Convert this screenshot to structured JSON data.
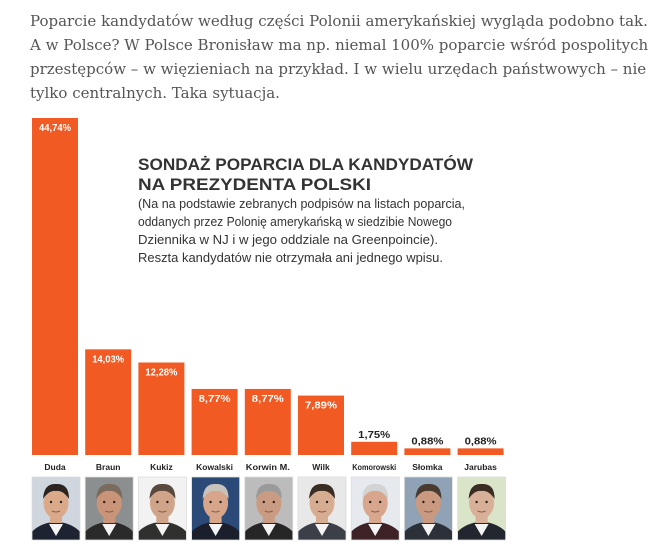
{
  "article": {
    "paragraph": "Poparcie kandydatów według części Polonii amerykańskiej wygląda podobno tak. A w Polsce? W Polsce Bronisław ma np. niemal 100% poparcie wśród pospolitych przestępców – w więzieniach na przykład. I w wielu urzędach państwowych – nie tylko centralnych. Taka sytuacja."
  },
  "chart_data": {
    "type": "bar",
    "title_lines": [
      "SONDAŻ POPARCIA DLA KANDYDATÓW",
      "NA PREZYDENTA POLSKI"
    ],
    "note_lines": [
      "(Na na podstawie zebranych podpisów na listach poparcia,",
      "oddanych przez Polonię amerykańską w siedzibie Nowego",
      "Dziennika w NJ i w jego oddziale na Greenpoincie).",
      "Reszta kandydatów nie otrzymała ani jednego wpisu."
    ],
    "categories": [
      "Duda",
      "Braun",
      "Kukiz",
      "Kowalski",
      "Korwin M.",
      "Wilk",
      "Komorowski",
      "Słomka",
      "Jarubas"
    ],
    "values": [
      44.74,
      14.03,
      12.28,
      8.77,
      8.77,
      7.89,
      1.75,
      0.88,
      0.88
    ],
    "value_labels": [
      "44,74%",
      "14,03%",
      "12,28%",
      "8,77%",
      "8,77%",
      "7,89%",
      "1,75%",
      "0,88%",
      "0,88%"
    ],
    "ylim": [
      0,
      44.74
    ],
    "grid": false,
    "legend": "none",
    "colors": {
      "bar": "#f15a22",
      "label_inside": "#ffffff",
      "label_outside": "#222222",
      "title": "#333333",
      "note": "#333333",
      "category": "#222222"
    },
    "photos": [
      {
        "icon": "portrait-duda",
        "bg": "#cfd6de",
        "face": "#d9a98a",
        "hair": "#2b2420",
        "suit": "#1d2330"
      },
      {
        "icon": "portrait-braun",
        "bg": "#8c8f90",
        "face": "#c99478",
        "hair": "#7a6b5c",
        "suit": "#2a2a2a"
      },
      {
        "icon": "portrait-kukiz",
        "bg": "#f2f2f2",
        "face": "#cfa489",
        "hair": "#5a4a3e",
        "suit": "#30302f"
      },
      {
        "icon": "portrait-kowalski",
        "bg": "#2c4a78",
        "face": "#d6a58a",
        "hair": "#c7c2bb",
        "suit": "#1a1f2b"
      },
      {
        "icon": "portrait-korwin",
        "bg": "#bcbcbc",
        "face": "#c89b82",
        "hair": "#9a9a9a",
        "suit": "#262626"
      },
      {
        "icon": "portrait-wilk",
        "bg": "#e8e8e8",
        "face": "#d7ad92",
        "hair": "#3a2d24",
        "suit": "#3c3f48"
      },
      {
        "icon": "portrait-komorowski",
        "bg": "#e6eaee",
        "face": "#d8a68d",
        "hair": "#d3d3d3",
        "suit": "#3d2228"
      },
      {
        "icon": "portrait-slomka",
        "bg": "#8fa2b6",
        "face": "#c99a80",
        "hair": "#4a3b30",
        "suit": "#2c3038"
      },
      {
        "icon": "portrait-jarubas",
        "bg": "#d9e4c8",
        "face": "#d8b098",
        "hair": "#3a2c22",
        "suit": "#22262e"
      }
    ]
  }
}
